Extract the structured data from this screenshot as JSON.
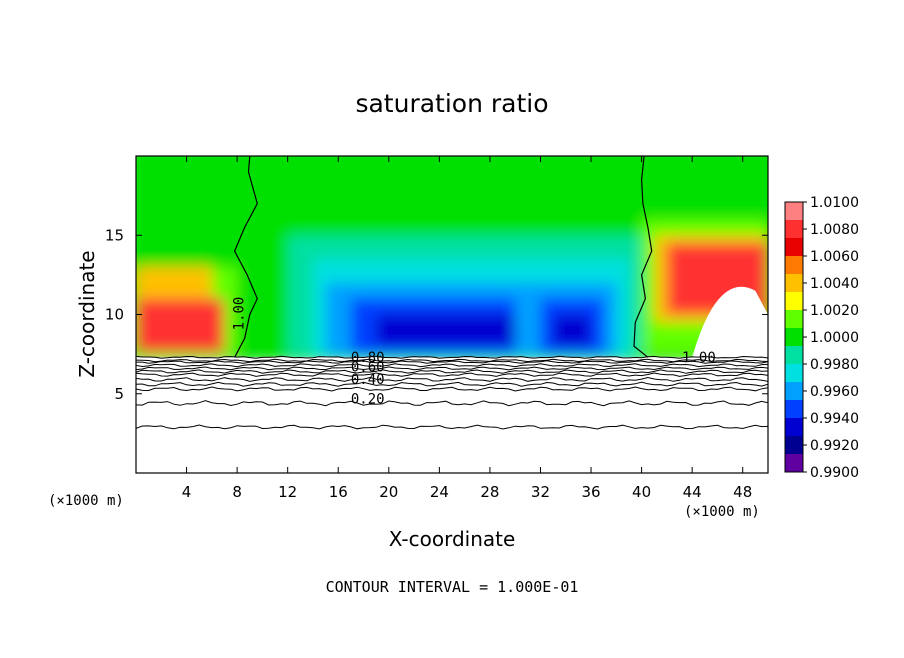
{
  "chart_data": {
    "type": "heatmap",
    "title": "saturation ratio",
    "xlabel": "X-coordinate",
    "ylabel": "Z-coordinate",
    "x_unit_left": "(×1000 m)",
    "x_unit_right": "(×1000 m)",
    "xlim": [
      0,
      50
    ],
    "ylim": [
      0,
      20
    ],
    "xticks": [
      4,
      8,
      12,
      16,
      20,
      24,
      28,
      32,
      36,
      40,
      44,
      48
    ],
    "yticks": [
      5,
      10,
      15
    ],
    "footer": "CONTOUR INTERVAL = 1.000E-01",
    "colorbar": {
      "levels": [
        "1.0100",
        "1.0080",
        "1.0060",
        "1.0040",
        "1.0020",
        "1.0000",
        "0.9980",
        "0.9960",
        "0.9940",
        "0.9920",
        "0.9900"
      ],
      "colors": [
        "#ff8080",
        "#ff3030",
        "#e80000",
        "#ff7a00",
        "#ffc000",
        "#ffff00",
        "#60ff00",
        "#00e000",
        "#00e0a0",
        "#00e0e0",
        "#00a0ff",
        "#0040ff",
        "#0000d0",
        "#000090",
        "#6000a0"
      ]
    },
    "contour_labels": [
      {
        "text": "1.00",
        "x": 8.5,
        "y": 9.0
      },
      {
        "text": "1.00",
        "x": 43.2,
        "y": 7.0
      },
      {
        "text": "0.80",
        "x": 17.0,
        "y": 7.0
      },
      {
        "text": "0.60",
        "x": 17.0,
        "y": 6.4
      },
      {
        "text": "0.40",
        "x": 17.0,
        "y": 5.6
      },
      {
        "text": "0.20",
        "x": 17.0,
        "y": 4.4
      }
    ],
    "contour_levels_below_cloud_base": [
      0.2,
      0.4,
      0.6,
      0.8,
      1.0
    ],
    "grid": false,
    "legend": "right"
  }
}
